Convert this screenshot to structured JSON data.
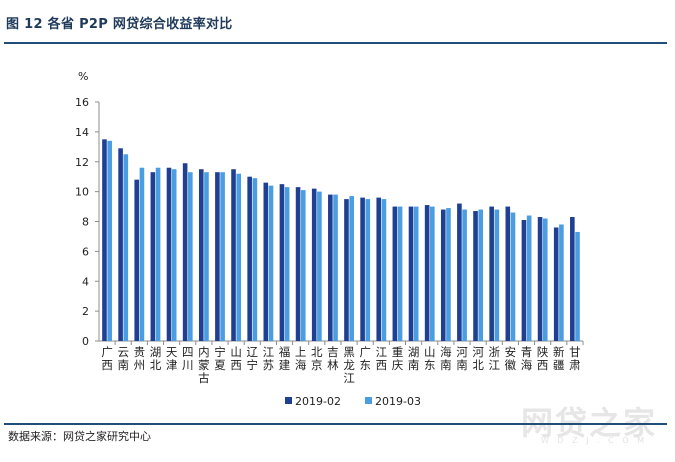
{
  "figure": {
    "title": "图 12   各省 P2P 网贷综合收益率对比",
    "source": "数据来源：网贷之家研究中心",
    "watermark": "网贷之家",
    "watermark_sub": "W D Z J . C O M"
  },
  "chart_data": {
    "type": "bar",
    "title": "",
    "unit": "%",
    "xlabel": "",
    "ylabel": "%",
    "ylim": [
      0,
      16
    ],
    "yticks": [
      0,
      2,
      4,
      6,
      8,
      10,
      12,
      14,
      16
    ],
    "grid": false,
    "legend": "bottom",
    "colors": [
      "#1f3f93",
      "#4a9de0"
    ],
    "categories": [
      "广西",
      "云南",
      "贵州",
      "湖北",
      "天津",
      "四川",
      "内蒙古",
      "宁夏",
      "山西",
      "辽宁",
      "江苏",
      "福建",
      "上海",
      "北京",
      "吉林",
      "黑龙江",
      "广东",
      "江西",
      "重庆",
      "湖南",
      "山东",
      "海南",
      "河南",
      "河北",
      "浙江",
      "安徽",
      "青海",
      "陕西",
      "新疆",
      "甘肃"
    ],
    "series": [
      {
        "name": "2019-02",
        "values": [
          13.5,
          12.9,
          10.8,
          11.3,
          11.6,
          11.9,
          11.5,
          11.3,
          11.5,
          11.0,
          10.6,
          10.5,
          10.3,
          10.2,
          9.8,
          9.5,
          9.6,
          9.6,
          9.0,
          9.0,
          9.1,
          8.8,
          9.2,
          8.7,
          9.0,
          9.0,
          8.1,
          8.3,
          7.6,
          8.3
        ]
      },
      {
        "name": "2019-03",
        "values": [
          13.4,
          12.5,
          11.6,
          11.6,
          11.5,
          11.3,
          11.3,
          11.3,
          11.2,
          10.9,
          10.4,
          10.3,
          10.1,
          10.0,
          9.8,
          9.7,
          9.5,
          9.5,
          9.0,
          9.0,
          9.0,
          8.9,
          8.8,
          8.8,
          8.8,
          8.6,
          8.4,
          8.2,
          7.8,
          7.3
        ]
      }
    ]
  }
}
